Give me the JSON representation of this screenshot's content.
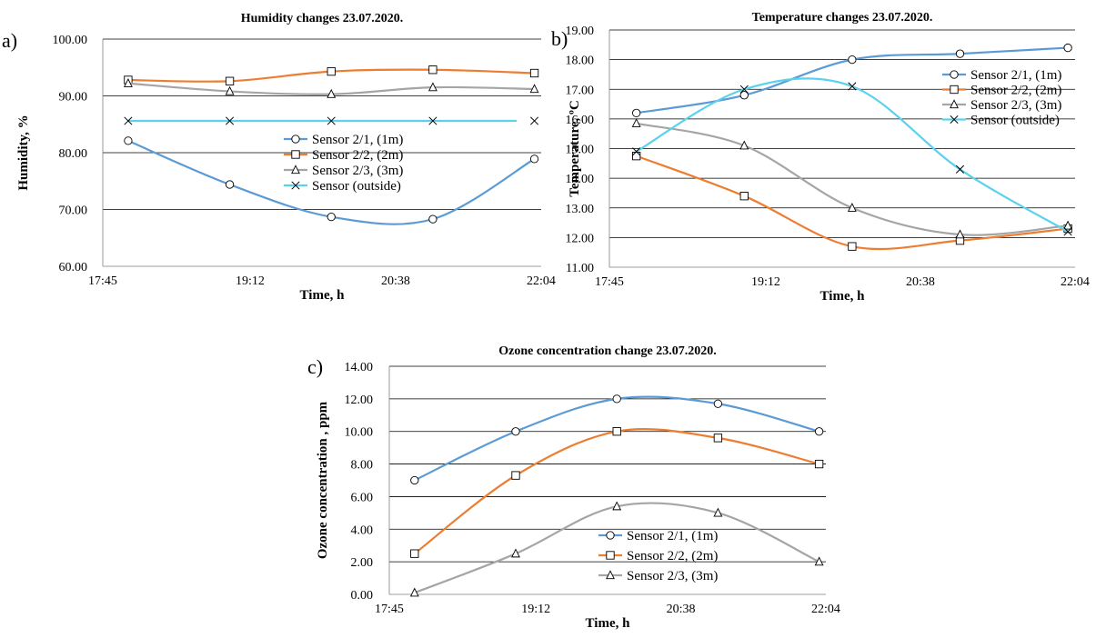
{
  "chart_data": [
    {
      "type": "line",
      "panel_label": "a)",
      "title": "Humidity changes 23.07.2020.",
      "xlabel": "Time, h",
      "ylabel": "Humidity, %",
      "xlim": [
        "17:45",
        "22:04"
      ],
      "ylim": [
        60,
        100
      ],
      "x_ticks": [
        "17:45",
        "19:12",
        "20:38",
        "22:04"
      ],
      "y_ticks": [
        "60.00",
        "70.00",
        "80.00",
        "90.00",
        "100.00"
      ],
      "grid": "horizontal",
      "legend_position": "right-center",
      "x": [
        "18:00",
        "19:00",
        "20:00",
        "21:00",
        "22:00"
      ],
      "series": [
        {
          "name": "Sensor 2/1, (1m)",
          "marker": "circle",
          "color": "#5b9bd5",
          "values": [
            82.1,
            74.4,
            68.7,
            68.3,
            78.9
          ]
        },
        {
          "name": "Sensor 2/2, (2m)",
          "marker": "square",
          "color": "#ed7d31",
          "values": [
            92.8,
            92.6,
            94.3,
            94.6,
            94.0
          ]
        },
        {
          "name": "Sensor 2/3, (3m)",
          "marker": "triangle",
          "color": "#a5a5a5",
          "values": [
            92.2,
            90.8,
            90.3,
            91.5,
            91.2
          ]
        },
        {
          "name": "Sensor (outside)",
          "marker": "x",
          "color": "#5ad2ee",
          "values": [
            85.6,
            85.6,
            85.6,
            85.6,
            85.6
          ]
        }
      ]
    },
    {
      "type": "line",
      "panel_label": "b)",
      "title": "Temperature changes 23.07.2020.",
      "xlabel": "Time, h",
      "ylabel": "Temperature, ºC",
      "xlim": [
        "17:45",
        "22:04"
      ],
      "ylim": [
        11,
        19
      ],
      "x_ticks": [
        "17:45",
        "19:12",
        "20:38",
        "22:04"
      ],
      "y_ticks": [
        "11.00",
        "12.00",
        "13.00",
        "14.00",
        "15.00",
        "16.00",
        "17.00",
        "18.00",
        "19.00"
      ],
      "grid": "horizontal",
      "legend_position": "top-right",
      "x": [
        "18:00",
        "19:00",
        "20:00",
        "21:00",
        "22:00"
      ],
      "series": [
        {
          "name": "Sensor 2/1, (1m)",
          "marker": "circle",
          "color": "#5b9bd5",
          "values": [
            16.2,
            16.8,
            18.0,
            18.2,
            18.4
          ]
        },
        {
          "name": "Sensor 2/2, (2m)",
          "marker": "square",
          "color": "#ed7d31",
          "values": [
            14.75,
            13.4,
            11.7,
            11.9,
            12.3
          ]
        },
        {
          "name": "Sensor 2/3, (3m)",
          "marker": "triangle",
          "color": "#a5a5a5",
          "values": [
            15.85,
            15.1,
            13.0,
            12.1,
            12.4
          ]
        },
        {
          "name": "Sensor (outside)",
          "marker": "x",
          "color": "#5ad2ee",
          "values": [
            14.9,
            17.0,
            17.1,
            14.3,
            12.2
          ]
        }
      ]
    },
    {
      "type": "line",
      "panel_label": "c)",
      "title": "Ozone concentration change 23.07.2020.",
      "xlabel": "Time, h",
      "ylabel": "Ozone concentration , ppm",
      "xlim": [
        "17:45",
        "22:04"
      ],
      "ylim": [
        0,
        14
      ],
      "x_ticks": [
        "17:45",
        "19:12",
        "20:38",
        "22:04"
      ],
      "y_ticks": [
        "0.00",
        "2.00",
        "4.00",
        "6.00",
        "8.00",
        "10.00",
        "12.00",
        "14.00"
      ],
      "grid": "horizontal",
      "legend_position": "bottom-center",
      "x": [
        "18:00",
        "19:00",
        "20:00",
        "21:00",
        "22:00"
      ],
      "series": [
        {
          "name": "Sensor 2/1, (1m)",
          "marker": "circle",
          "color": "#5b9bd5",
          "values": [
            7.0,
            10.0,
            12.0,
            11.7,
            10.0
          ]
        },
        {
          "name": "Sensor 2/2, (2m)",
          "marker": "square",
          "color": "#ed7d31",
          "values": [
            2.5,
            7.3,
            10.0,
            9.6,
            8.0
          ]
        },
        {
          "name": "Sensor 2/3, (3m)",
          "marker": "triangle",
          "color": "#a5a5a5",
          "values": [
            0.1,
            2.5,
            5.4,
            5.0,
            2.0
          ]
        }
      ]
    }
  ]
}
